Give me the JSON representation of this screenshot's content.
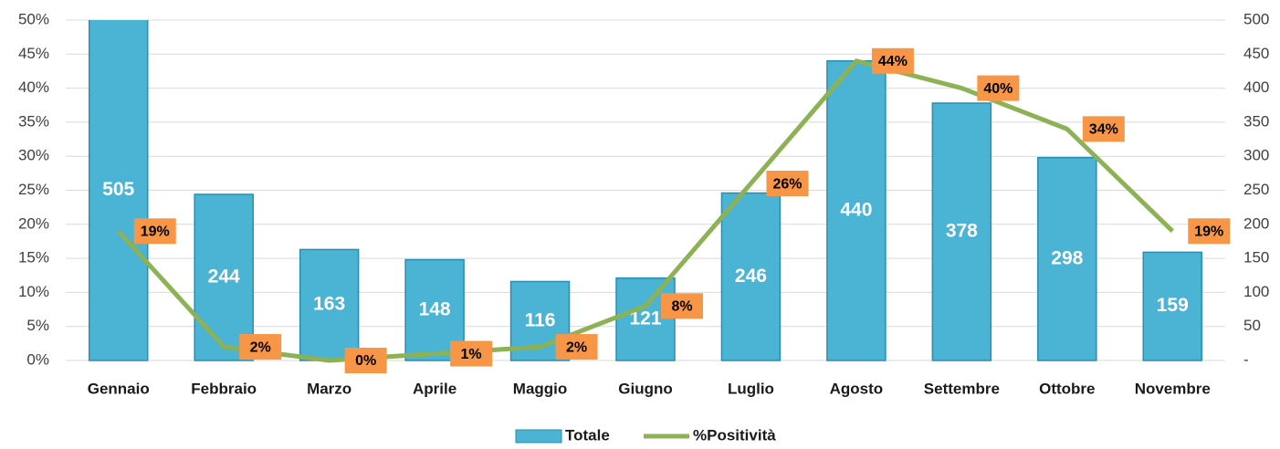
{
  "chart_data": {
    "type": "bar_line",
    "categories": [
      "Gennaio",
      "Febbraio",
      "Marzo",
      "Aprile",
      "Maggio",
      "Giugno",
      "Luglio",
      "Agosto",
      "Settembre",
      "Ottobre",
      "Novembre"
    ],
    "series": [
      {
        "name": "Totale",
        "type": "bar",
        "axis": "y2",
        "color": "#4bb3d3",
        "values": [
          505,
          244,
          163,
          148,
          116,
          121,
          246,
          440,
          378,
          298,
          159
        ]
      },
      {
        "name": "%Positività",
        "type": "line",
        "axis": "y",
        "color": "#8db255",
        "values": [
          19,
          2,
          0,
          1,
          2,
          8,
          26,
          44,
          40,
          34,
          19
        ],
        "value_labels": [
          "19%",
          "2%",
          "0%",
          "1%",
          "2%",
          "8%",
          "26%",
          "44%",
          "40%",
          "34%",
          "19%"
        ]
      }
    ],
    "ylim": [
      0,
      50
    ],
    "yticks": [
      {
        "value": 0,
        "label": "0%"
      },
      {
        "value": 5,
        "label": "5%"
      },
      {
        "value": 10,
        "label": "10%"
      },
      {
        "value": 15,
        "label": "15%"
      },
      {
        "value": 20,
        "label": "20%"
      },
      {
        "value": 25,
        "label": "25%"
      },
      {
        "value": 30,
        "label": "30%"
      },
      {
        "value": 35,
        "label": "35%"
      },
      {
        "value": 40,
        "label": "40%"
      },
      {
        "value": 45,
        "label": "45%"
      },
      {
        "value": 50,
        "label": "50%"
      }
    ],
    "y2lim": [
      0,
      500
    ],
    "y2ticks": [
      {
        "value": 0,
        "label": "-"
      },
      50,
      100,
      150,
      200,
      250,
      300,
      350,
      400,
      450,
      500
    ],
    "grid": true,
    "legend": "bottom"
  }
}
